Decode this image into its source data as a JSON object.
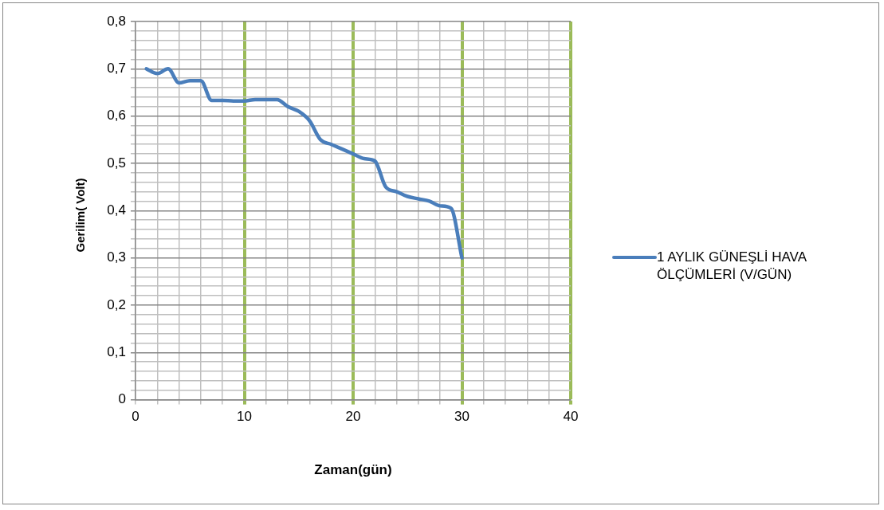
{
  "chart_data": {
    "type": "line",
    "xlabel": "Zaman(gün)",
    "ylabel": "Gerilim( Volt)",
    "x": [
      1,
      2,
      3,
      4,
      5,
      6,
      7,
      8,
      9,
      10,
      11,
      12,
      13,
      14,
      15,
      16,
      17,
      18,
      19,
      20,
      21,
      22,
      23,
      24,
      25,
      26,
      27,
      28,
      29,
      30
    ],
    "series": [
      {
        "name": "1 AYLIK GÜNEŞLİ HAVA ÖLÇÜMLERİ (V/GÜN)",
        "color": "#4a7ebb",
        "values": [
          0.7,
          0.69,
          0.7,
          0.67,
          0.675,
          0.675,
          0.633,
          0.633,
          0.632,
          0.632,
          0.635,
          0.635,
          0.635,
          0.62,
          0.61,
          0.59,
          0.55,
          0.54,
          0.53,
          0.52,
          0.51,
          0.505,
          0.45,
          0.44,
          0.43,
          0.425,
          0.42,
          0.41,
          0.405,
          0.3
        ]
      }
    ],
    "xlim": [
      0,
      40
    ],
    "xticks": [
      0,
      {
        "value": 2,
        "label": null
      },
      {
        "value": 4,
        "label": null
      },
      {
        "value": 6,
        "label": null
      },
      {
        "value": 8,
        "label": null
      },
      10,
      {
        "value": 12,
        "label": null
      },
      {
        "value": 14,
        "label": null
      },
      {
        "value": 16,
        "label": null
      },
      {
        "value": 18,
        "label": null
      },
      20,
      {
        "value": 22,
        "label": null
      },
      {
        "value": 24,
        "label": null
      },
      {
        "value": 26,
        "label": null
      },
      {
        "value": 28,
        "label": null
      },
      30,
      {
        "value": 32,
        "label": null
      },
      {
        "value": 34,
        "label": null
      },
      {
        "value": 36,
        "label": null
      },
      {
        "value": 38,
        "label": null
      },
      40
    ],
    "ylim": [
      0,
      0.8
    ],
    "yticks": [
      0,
      {
        "value": 0.02,
        "label": null
      },
      {
        "value": 0.04,
        "label": null
      },
      {
        "value": 0.06,
        "label": null
      },
      {
        "value": 0.08,
        "label": null
      },
      {
        "value": 0.1,
        "label": "0,1"
      },
      {
        "value": 0.12,
        "label": null
      },
      {
        "value": 0.14,
        "label": null
      },
      {
        "value": 0.16,
        "label": null
      },
      {
        "value": 0.18,
        "label": null
      },
      {
        "value": 0.2,
        "label": "0,2"
      },
      {
        "value": 0.22,
        "label": null
      },
      {
        "value": 0.24,
        "label": null
      },
      {
        "value": 0.26,
        "label": null
      },
      {
        "value": 0.28,
        "label": null
      },
      {
        "value": 0.3,
        "label": "0,3"
      },
      {
        "value": 0.32,
        "label": null
      },
      {
        "value": 0.34,
        "label": null
      },
      {
        "value": 0.36,
        "label": null
      },
      {
        "value": 0.38,
        "label": null
      },
      {
        "value": 0.4,
        "label": "0,4"
      },
      {
        "value": 0.42,
        "label": null
      },
      {
        "value": 0.44,
        "label": null
      },
      {
        "value": 0.46,
        "label": null
      },
      {
        "value": 0.48,
        "label": null
      },
      {
        "value": 0.5,
        "label": "0,5"
      },
      {
        "value": 0.52,
        "label": null
      },
      {
        "value": 0.54,
        "label": null
      },
      {
        "value": 0.56,
        "label": null
      },
      {
        "value": 0.58,
        "label": null
      },
      {
        "value": 0.6,
        "label": "0,6"
      },
      {
        "value": 0.62,
        "label": null
      },
      {
        "value": 0.64,
        "label": null
      },
      {
        "value": 0.66,
        "label": null
      },
      {
        "value": 0.68,
        "label": null
      },
      {
        "value": 0.7,
        "label": "0,7"
      },
      {
        "value": 0.72,
        "label": null
      },
      {
        "value": 0.74,
        "label": null
      },
      {
        "value": 0.76,
        "label": null
      },
      {
        "value": 0.78,
        "label": null
      },
      {
        "value": 0.8,
        "label": "0,8"
      }
    ],
    "grid": true,
    "legend": "right",
    "marker": "none",
    "line_style": "solid"
  }
}
